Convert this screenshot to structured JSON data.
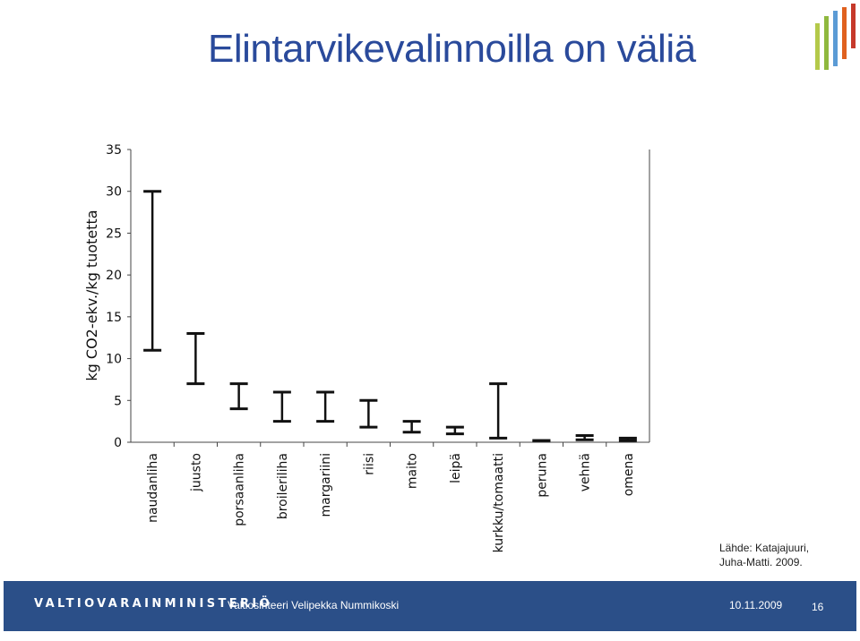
{
  "slide": {
    "title": "Elintarvikevalinnoilla on väliä",
    "source_line1": "Lähde: Katajajuuri,",
    "source_line2": "Juha-Matti. 2009."
  },
  "footer": {
    "ministry": "VALTIOVARAINMINISTERIÖ",
    "presenter": "Valtiosihteeri Velipekka Nummikoski",
    "date": "10.11.2009",
    "page": "16"
  },
  "colors": {
    "title": "#2a4a9b",
    "footer_bg": "#2b4f88",
    "logo_bars": [
      "#b4c94a",
      "#8fb83e",
      "#5b9bd5",
      "#e0611f",
      "#c6392b"
    ]
  },
  "chart_data": {
    "type": "range",
    "ylabel": "kg CO2-ekv./kg tuotetta",
    "ylim": [
      0,
      35
    ],
    "yticks": [
      0,
      5,
      10,
      15,
      20,
      25,
      30,
      35
    ],
    "grid": false,
    "categories": [
      "naudanliha",
      "juusto",
      "porsaanliha",
      "broileriliha",
      "margariini",
      "riisi",
      "maito",
      "leipä",
      "kurkku/tomaatti",
      "peruna",
      "vehnä",
      "omena"
    ],
    "ranges": [
      {
        "low": 11,
        "high": 30
      },
      {
        "low": 7,
        "high": 13
      },
      {
        "low": 4,
        "high": 7
      },
      {
        "low": 2.5,
        "high": 6
      },
      {
        "low": 2.5,
        "high": 6
      },
      {
        "low": 1.8,
        "high": 5
      },
      {
        "low": 1.2,
        "high": 2.5
      },
      {
        "low": 1,
        "high": 1.8
      },
      {
        "low": 0.5,
        "high": 7
      },
      {
        "low": 0.2,
        "high": 0.2
      },
      {
        "low": 0.3,
        "high": 0.8
      },
      {
        "low": 0.2,
        "high": 0.5
      }
    ]
  }
}
